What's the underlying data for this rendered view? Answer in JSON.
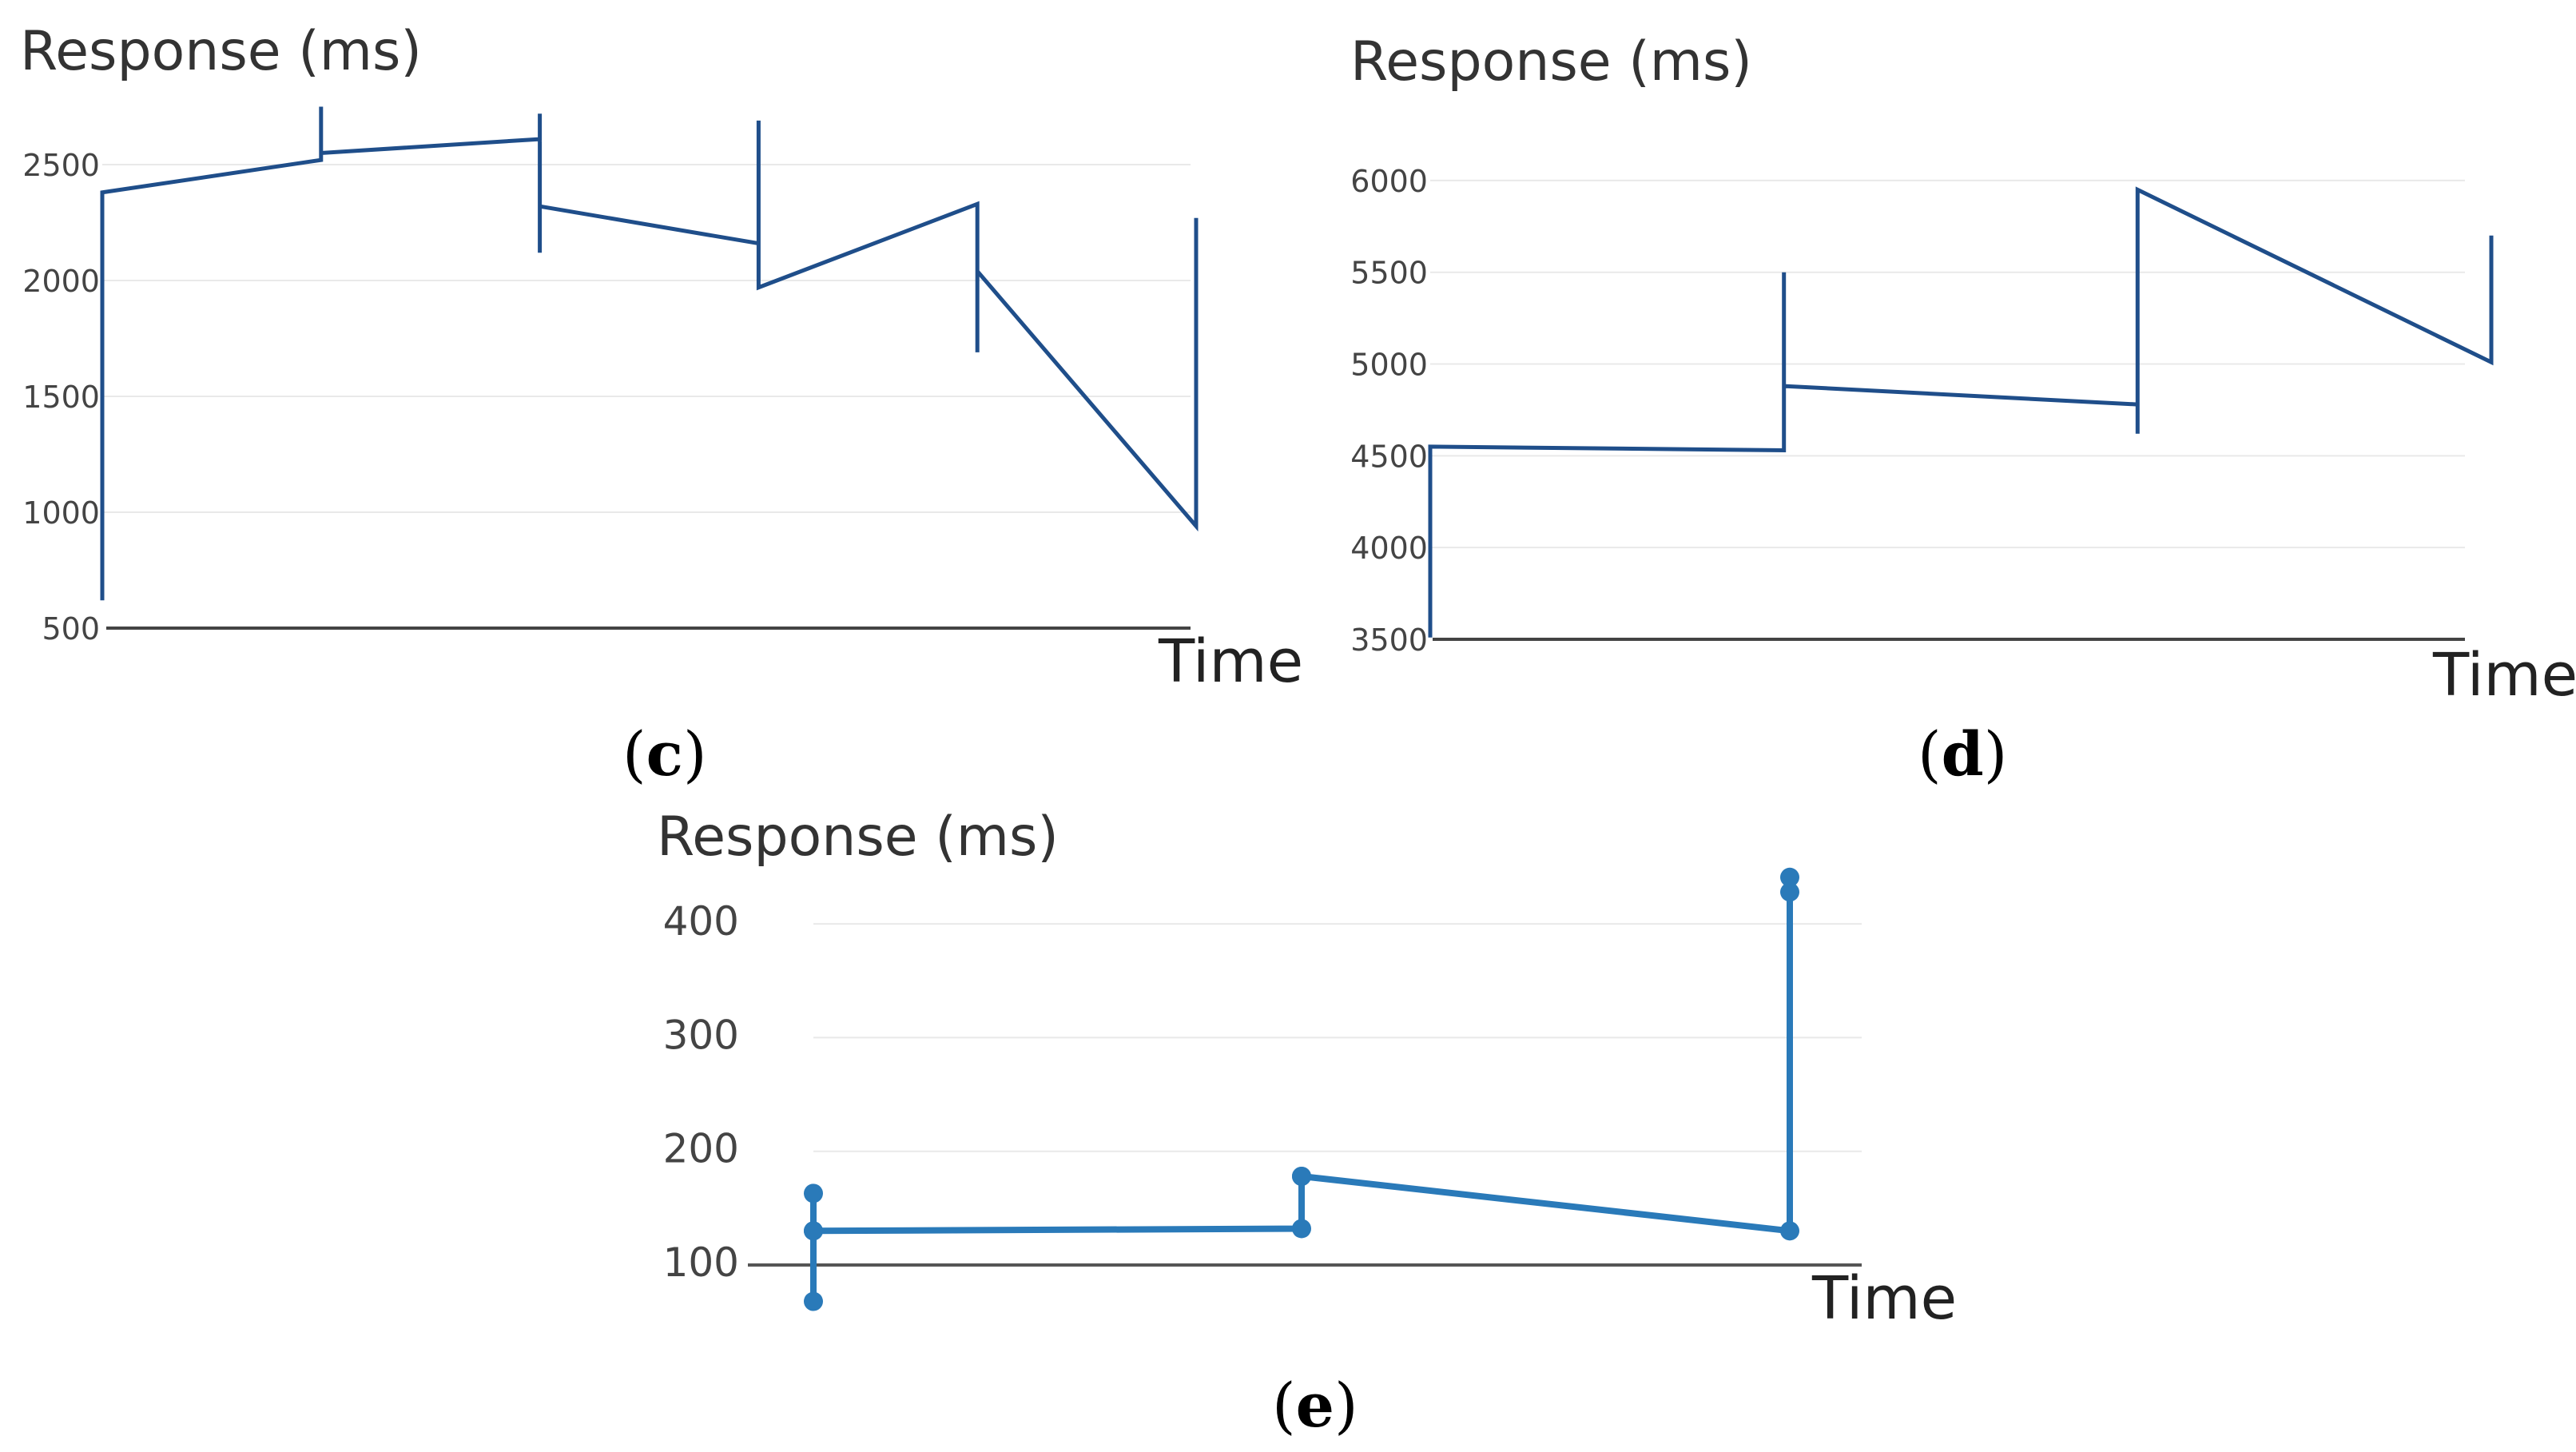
{
  "chart_data": [
    {
      "id": "c",
      "type": "line",
      "panel_label": "c",
      "ylabel": "Response (ms)",
      "xlabel": "Time",
      "yticks": [
        500,
        1000,
        1500,
        2000,
        2500
      ],
      "ylim": [
        500,
        2900
      ],
      "xlim": [
        0,
        5
      ],
      "color": "#1f4e8a",
      "markers": false,
      "x": [
        0,
        0,
        1,
        1,
        1,
        2,
        2,
        2,
        2,
        3,
        3,
        3,
        3,
        4,
        4,
        4,
        4,
        5,
        5
      ],
      "y": [
        620,
        2380,
        2520,
        2750,
        2550,
        2610,
        2720,
        2120,
        2320,
        2160,
        2690,
        1970,
        1970,
        2330,
        1690,
        2040,
        2040,
        940,
        2270
      ],
      "series_name": "response"
    },
    {
      "id": "d",
      "type": "line",
      "panel_label": "d",
      "ylabel": "Response (ms)",
      "xlabel": "Time",
      "yticks": [
        3500,
        4000,
        4500,
        5000,
        5500,
        6000
      ],
      "ylim": [
        3500,
        6200
      ],
      "xlim": [
        0,
        3
      ],
      "color": "#1f4e8a",
      "markers": false,
      "x": [
        0,
        0,
        1,
        1,
        1,
        2,
        2,
        2,
        3,
        3
      ],
      "y": [
        3510,
        4550,
        4530,
        5500,
        4880,
        4780,
        4620,
        5950,
        5010,
        5700
      ],
      "series_name": "response"
    },
    {
      "id": "e",
      "type": "line",
      "panel_label": "e",
      "ylabel": "Response (ms)",
      "xlabel": "Time",
      "yticks": [
        100,
        200,
        300,
        400
      ],
      "ylim": [
        100,
        450
      ],
      "xlim": [
        0,
        2
      ],
      "color": "#2a7ab9",
      "markers": true,
      "x": [
        0,
        0,
        0,
        0,
        1,
        1,
        1,
        2,
        2,
        2
      ],
      "y": [
        163,
        68,
        130,
        130,
        132,
        178,
        178,
        130,
        428,
        441
      ],
      "series_name": "response"
    }
  ]
}
